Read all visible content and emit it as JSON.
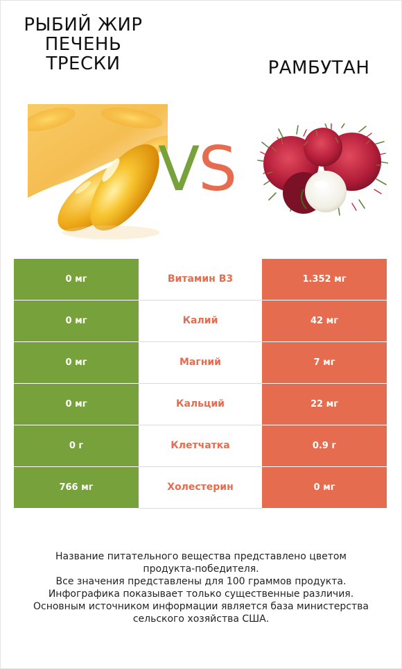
{
  "header": {
    "left_title_lines": [
      "РЫБИЙ ЖИР",
      "ПЕЧЕНЬ",
      "ТРЕСКИ"
    ],
    "right_title": "РАМБУТАН",
    "vs_v": "V",
    "vs_s": "S"
  },
  "colors": {
    "left_accent": "#77a13a",
    "right_accent": "#e56c4f"
  },
  "rows": [
    {
      "left": "0 мг",
      "nutrient": "Витамин B3",
      "right": "1.352 мг",
      "winner": "right"
    },
    {
      "left": "0 мг",
      "nutrient": "Калий",
      "right": "42 мг",
      "winner": "right"
    },
    {
      "left": "0 мг",
      "nutrient": "Магний",
      "right": "7 мг",
      "winner": "right"
    },
    {
      "left": "0 мг",
      "nutrient": "Кальций",
      "right": "22 мг",
      "winner": "right"
    },
    {
      "left": "0 г",
      "nutrient": "Клетчатка",
      "right": "0.9 г",
      "winner": "right"
    },
    {
      "left": "766 мг",
      "nutrient": "Холестерин",
      "right": "0 мг",
      "winner": "right"
    }
  ],
  "footnote_lines": [
    "Название питательного вещества представлено цветом",
    "продукта-победителя.",
    "Все значения представлены для 100 граммов продукта.",
    "Инфографика показывает только существенные различия.",
    "Основным источником информации является база министерства",
    "сельского хозяйства США."
  ]
}
